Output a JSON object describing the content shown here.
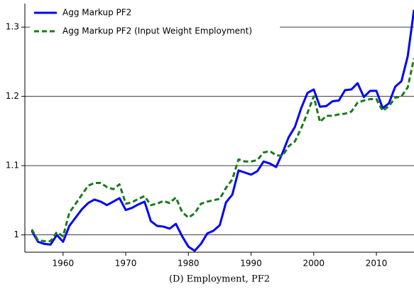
{
  "chart_data": {
    "type": "line",
    "caption": "(D) Employment, PF2",
    "x": [
      1955,
      1956,
      1957,
      1958,
      1959,
      1960,
      1961,
      1962,
      1963,
      1964,
      1965,
      1966,
      1967,
      1968,
      1969,
      1970,
      1971,
      1972,
      1973,
      1974,
      1975,
      1976,
      1977,
      1978,
      1979,
      1980,
      1981,
      1982,
      1983,
      1984,
      1985,
      1986,
      1987,
      1988,
      1989,
      1990,
      1991,
      1992,
      1993,
      1994,
      1995,
      1996,
      1997,
      1998,
      1999,
      2000,
      2001,
      2002,
      2003,
      2004,
      2005,
      2006,
      2007,
      2008,
      2009,
      2010,
      2011,
      2012,
      2013,
      2014,
      2015,
      2016
    ],
    "series": [
      {
        "name": "Agg Markup PF2",
        "color": "#0000ff",
        "dash": false,
        "values": [
          1.006,
          0.99,
          0.987,
          0.986,
          1.0,
          0.99,
          1.013,
          1.025,
          1.037,
          1.046,
          1.051,
          1.048,
          1.043,
          1.048,
          1.053,
          1.036,
          1.039,
          1.044,
          1.048,
          1.02,
          1.013,
          1.012,
          1.009,
          1.016,
          0.998,
          0.983,
          0.977,
          0.987,
          1.002,
          1.006,
          1.014,
          1.047,
          1.058,
          1.093,
          1.09,
          1.087,
          1.092,
          1.106,
          1.103,
          1.098,
          1.118,
          1.141,
          1.156,
          1.183,
          1.205,
          1.21,
          1.185,
          1.186,
          1.193,
          1.194,
          1.209,
          1.21,
          1.219,
          1.199,
          1.208,
          1.208,
          1.183,
          1.19,
          1.214,
          1.222,
          1.258,
          1.325
        ]
      },
      {
        "name": "Agg Markup PF2 (Input Weight Employment)",
        "color": "#1a7a1a",
        "dash": true,
        "values": [
          1.008,
          0.992,
          0.991,
          0.991,
          1.004,
          0.998,
          1.032,
          1.045,
          1.058,
          1.071,
          1.075,
          1.075,
          1.069,
          1.066,
          1.073,
          1.045,
          1.047,
          1.052,
          1.056,
          1.043,
          1.045,
          1.049,
          1.046,
          1.054,
          1.033,
          1.025,
          1.031,
          1.045,
          1.048,
          1.05,
          1.052,
          1.068,
          1.08,
          1.109,
          1.106,
          1.106,
          1.108,
          1.119,
          1.121,
          1.115,
          1.114,
          1.128,
          1.135,
          1.154,
          1.176,
          1.2,
          1.163,
          1.172,
          1.172,
          1.174,
          1.175,
          1.178,
          1.191,
          1.194,
          1.196,
          1.196,
          1.179,
          1.186,
          1.198,
          1.2,
          1.213,
          1.255
        ]
      }
    ],
    "xlim": [
      1953.9,
      2016.0
    ],
    "xticks": [
      1960,
      1970,
      1980,
      1990,
      2000,
      2010
    ],
    "ylim": [
      0.975,
      1.334
    ],
    "yticks": [
      1,
      1.1,
      1.2,
      1.3
    ],
    "grid": true,
    "legend": "top-left"
  }
}
